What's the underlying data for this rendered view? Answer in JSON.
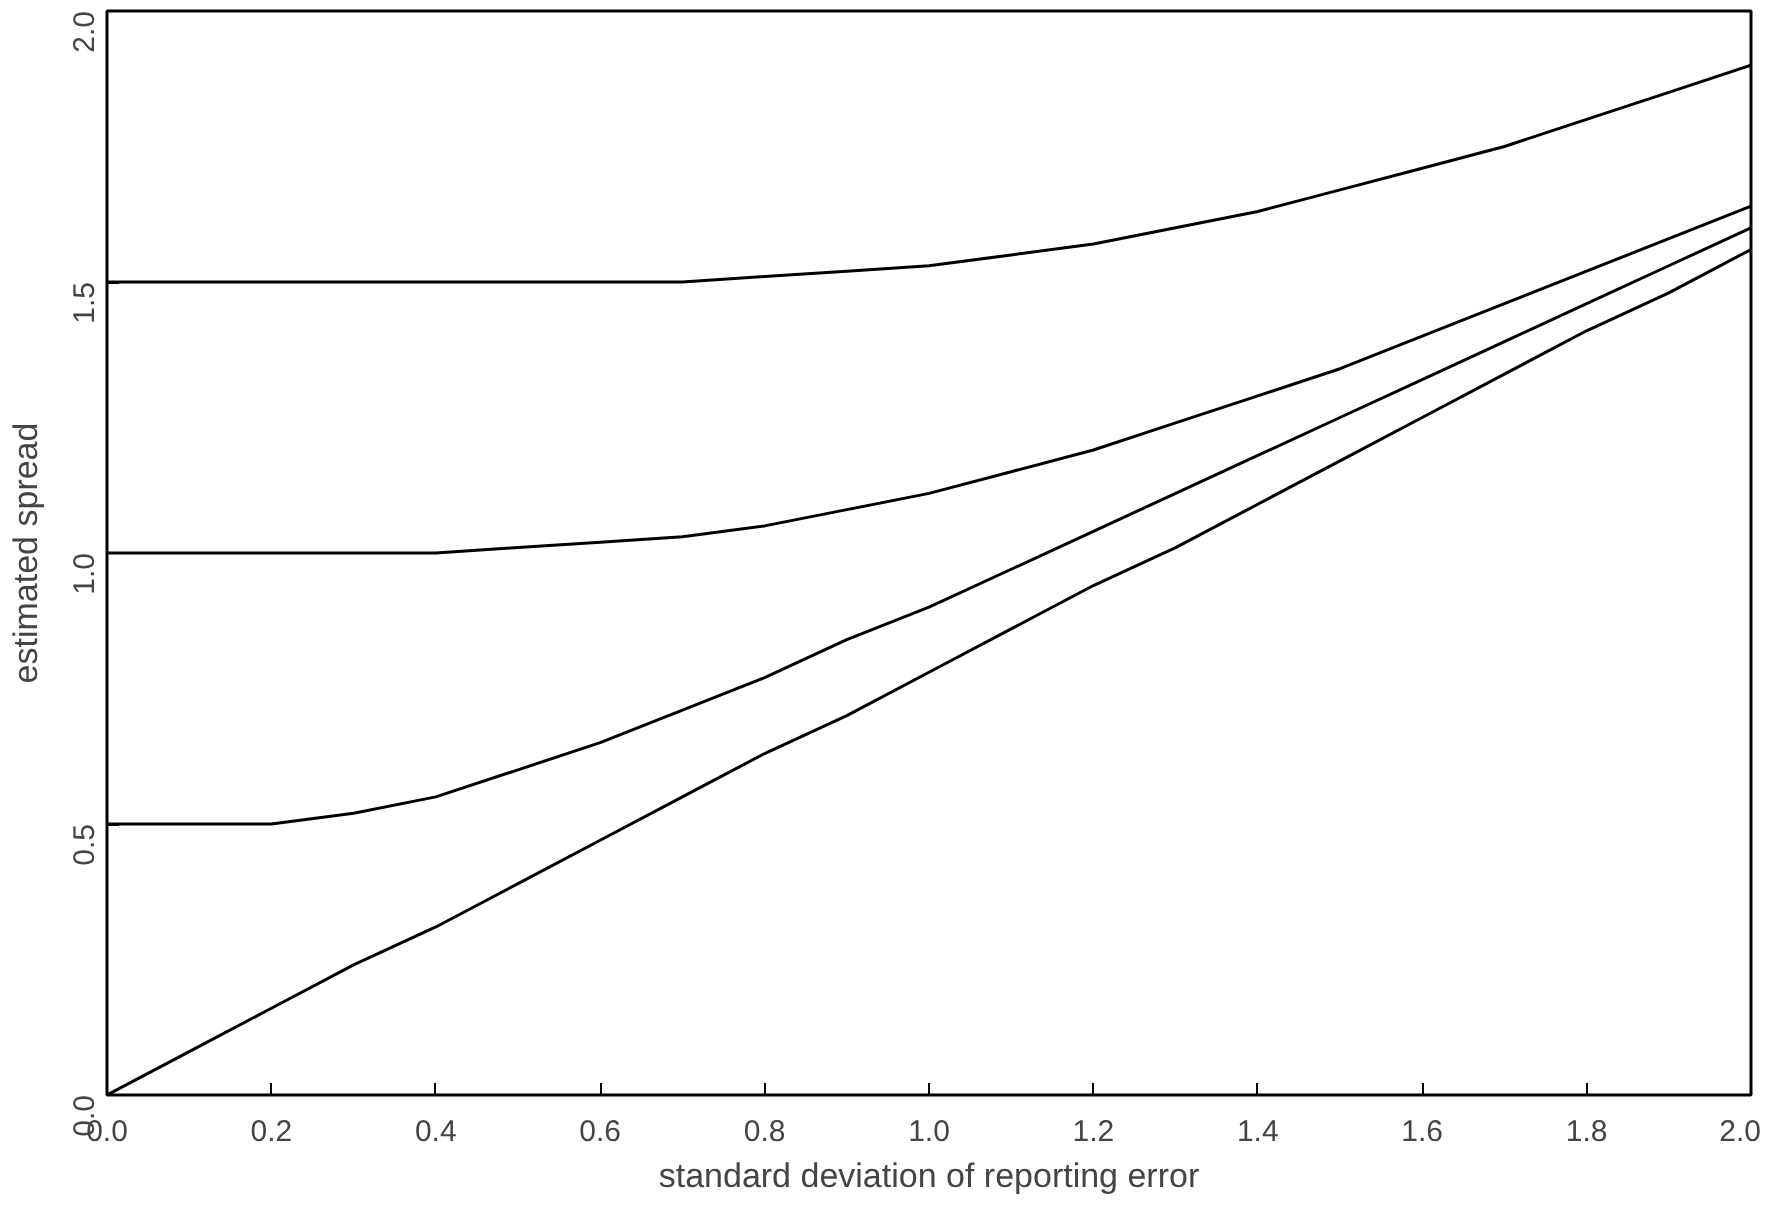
{
  "chart_data": {
    "type": "line",
    "xlabel": "standard deviation of reporting error",
    "ylabel": "estimated spread",
    "x": [
      0,
      0.1,
      0.2,
      0.3,
      0.4,
      0.5,
      0.6,
      0.7,
      0.8,
      0.9,
      1.0,
      1.1,
      1.2,
      1.3,
      1.4,
      1.5,
      1.6,
      1.7,
      1.8,
      1.9,
      2.0
    ],
    "series": [
      {
        "color": "#000000",
        "values": [
          0,
          0.08,
          0.16,
          0.24,
          0.31,
          0.39,
          0.47,
          0.55,
          0.63,
          0.7,
          0.78,
          0.86,
          0.94,
          1.01,
          1.09,
          1.17,
          1.25,
          1.33,
          1.41,
          1.48,
          1.56
        ]
      },
      {
        "color": "#000000",
        "values": [
          0.5,
          0.5,
          0.5,
          0.52,
          0.55,
          0.6,
          0.65,
          0.71,
          0.77,
          0.84,
          0.9,
          0.97,
          1.04,
          1.11,
          1.18,
          1.25,
          1.32,
          1.39,
          1.46,
          1.53,
          1.6
        ]
      },
      {
        "color": "#000000",
        "values": [
          1.0,
          1.0,
          1.0,
          1.0,
          1.0,
          1.01,
          1.02,
          1.03,
          1.05,
          1.08,
          1.11,
          1.15,
          1.19,
          1.24,
          1.29,
          1.34,
          1.4,
          1.46,
          1.52,
          1.58,
          1.64
        ]
      },
      {
        "color": "#000000",
        "values": [
          1.5,
          1.5,
          1.5,
          1.5,
          1.5,
          1.5,
          1.5,
          1.5,
          1.51,
          1.52,
          1.53,
          1.55,
          1.57,
          1.6,
          1.63,
          1.67,
          1.71,
          1.75,
          1.8,
          1.85,
          1.9
        ]
      }
    ],
    "xlim": [
      0,
      2.0
    ],
    "ylim": [
      0,
      2.0
    ],
    "xticks": [
      {
        "value": 0,
        "label": "0.0"
      },
      0.2,
      0.4,
      0.6,
      0.8,
      {
        "value": 1,
        "label": "1.0"
      },
      1.2,
      1.4,
      1.6,
      1.8,
      {
        "value": 2,
        "label": "2.0"
      }
    ],
    "yticks": [
      {
        "value": 0,
        "label": "0.0"
      },
      0.5,
      {
        "value": 1,
        "label": "1.0"
      },
      1.5,
      {
        "value": 2,
        "label": "2.0"
      }
    ],
    "grid": false,
    "marker": "none",
    "line_style": "solid"
  }
}
